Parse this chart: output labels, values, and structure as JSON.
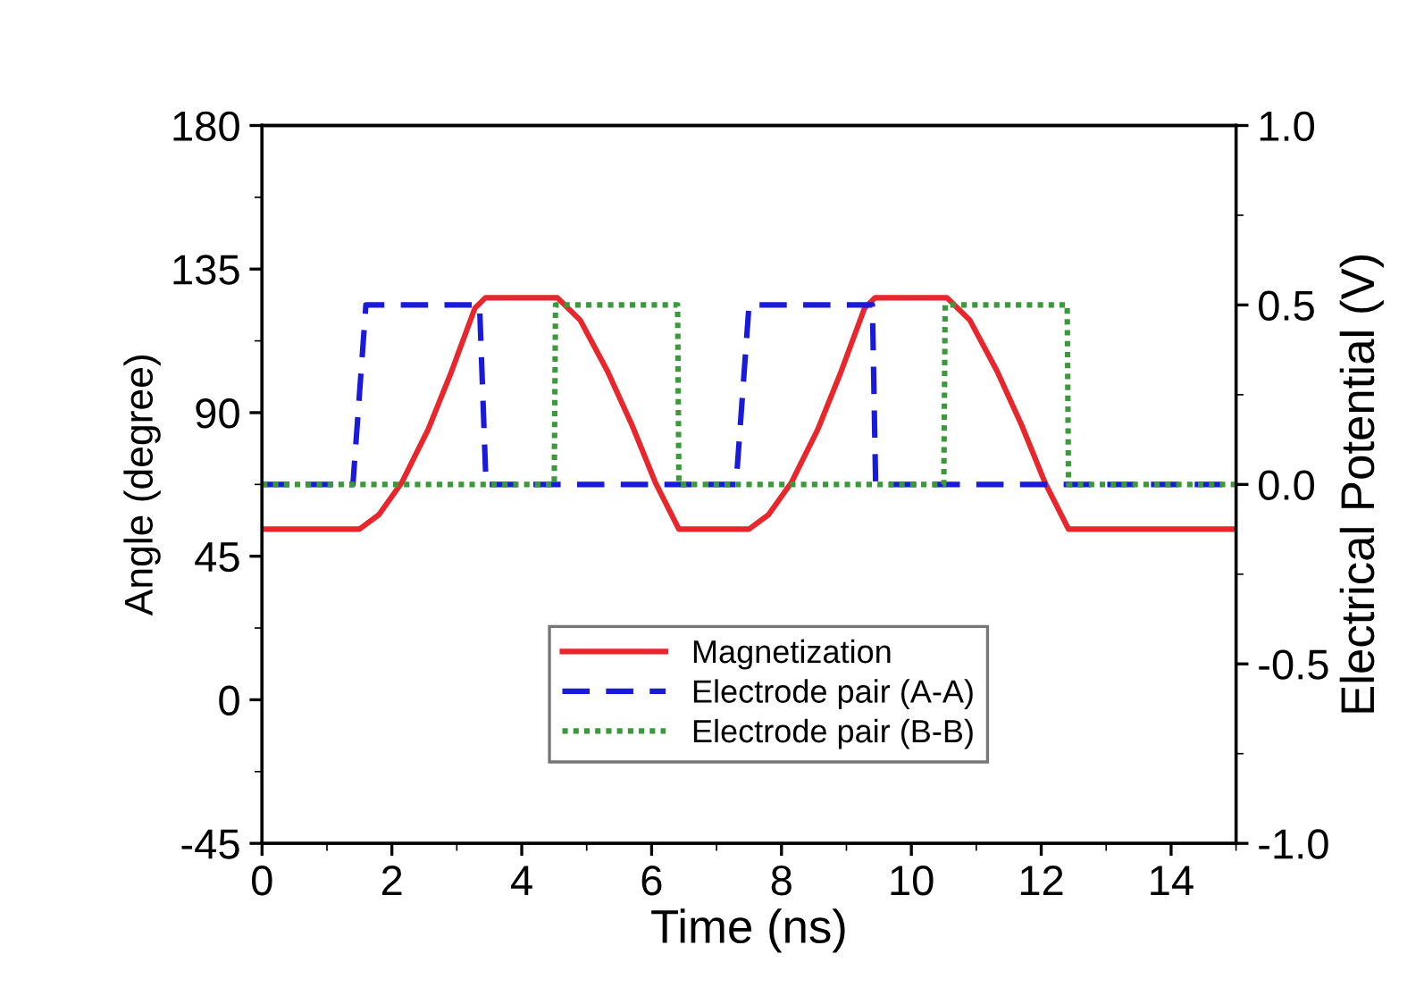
{
  "chart_data": {
    "type": "line",
    "xlabel": "Time (ns)",
    "ylabel": "Angle (degree)",
    "y2label": "Electrical Potential (V)",
    "xlim": [
      0,
      15
    ],
    "xticks": [
      0,
      2,
      4,
      6,
      8,
      10,
      12,
      14
    ],
    "ylim": [
      -45,
      180
    ],
    "yticks": [
      -45,
      0,
      45,
      90,
      135,
      180
    ],
    "y2lim": [
      -1.0,
      1.0
    ],
    "y2ticks": [
      {
        "value": -1.0,
        "label": "-1.0"
      },
      {
        "value": -0.5,
        "label": "-0.5"
      },
      {
        "value": 0.0,
        "label": "0.0"
      },
      {
        "value": 0.5,
        "label": "0.5"
      },
      {
        "value": 1.0,
        "label": "1.0"
      }
    ],
    "legend": "bottom",
    "grid": false,
    "marker": "none",
    "series": [
      {
        "name": "Magnetization",
        "color": "#e8262b",
        "line_style": "solid",
        "x": [
          0,
          1.5,
          1.8,
          2.15,
          2.56,
          2.92,
          3.28,
          3.44,
          4.55,
          4.9,
          5.32,
          5.7,
          6.06,
          6.42,
          7.5,
          7.8,
          8.15,
          8.56,
          8.92,
          9.28,
          9.44,
          10.55,
          10.9,
          11.32,
          11.7,
          12.06,
          12.42,
          15
        ],
        "values": [
          53.5,
          53.5,
          58,
          68,
          84.8,
          103,
          122.8,
          126,
          126,
          119,
          103,
          86,
          68,
          53.5,
          53.5,
          58,
          68,
          84.8,
          103,
          122.8,
          126,
          126,
          119,
          103,
          86,
          68,
          53.5,
          53.5
        ]
      },
      {
        "name": "Electrode pair (A-A)",
        "color": "#1a1adc",
        "line_style": "dashed",
        "axis": "y2",
        "x": [
          0,
          1.4,
          1.6,
          3.35,
          3.45,
          7.3,
          7.5,
          9.4,
          9.45,
          15
        ],
        "values": [
          0,
          0,
          0.5,
          0.5,
          0,
          0,
          0.5,
          0.5,
          0,
          0
        ]
      },
      {
        "name": "Electrode pair (B-B)",
        "color": "#3a9a3a",
        "line_style": "dotted",
        "axis": "y2",
        "x": [
          0,
          4.5,
          4.52,
          6.4,
          6.42,
          10.5,
          10.52,
          12.4,
          12.42,
          15
        ],
        "values": [
          0,
          0,
          0.5,
          0.5,
          0,
          0,
          0.5,
          0.5,
          0,
          0
        ]
      }
    ]
  }
}
